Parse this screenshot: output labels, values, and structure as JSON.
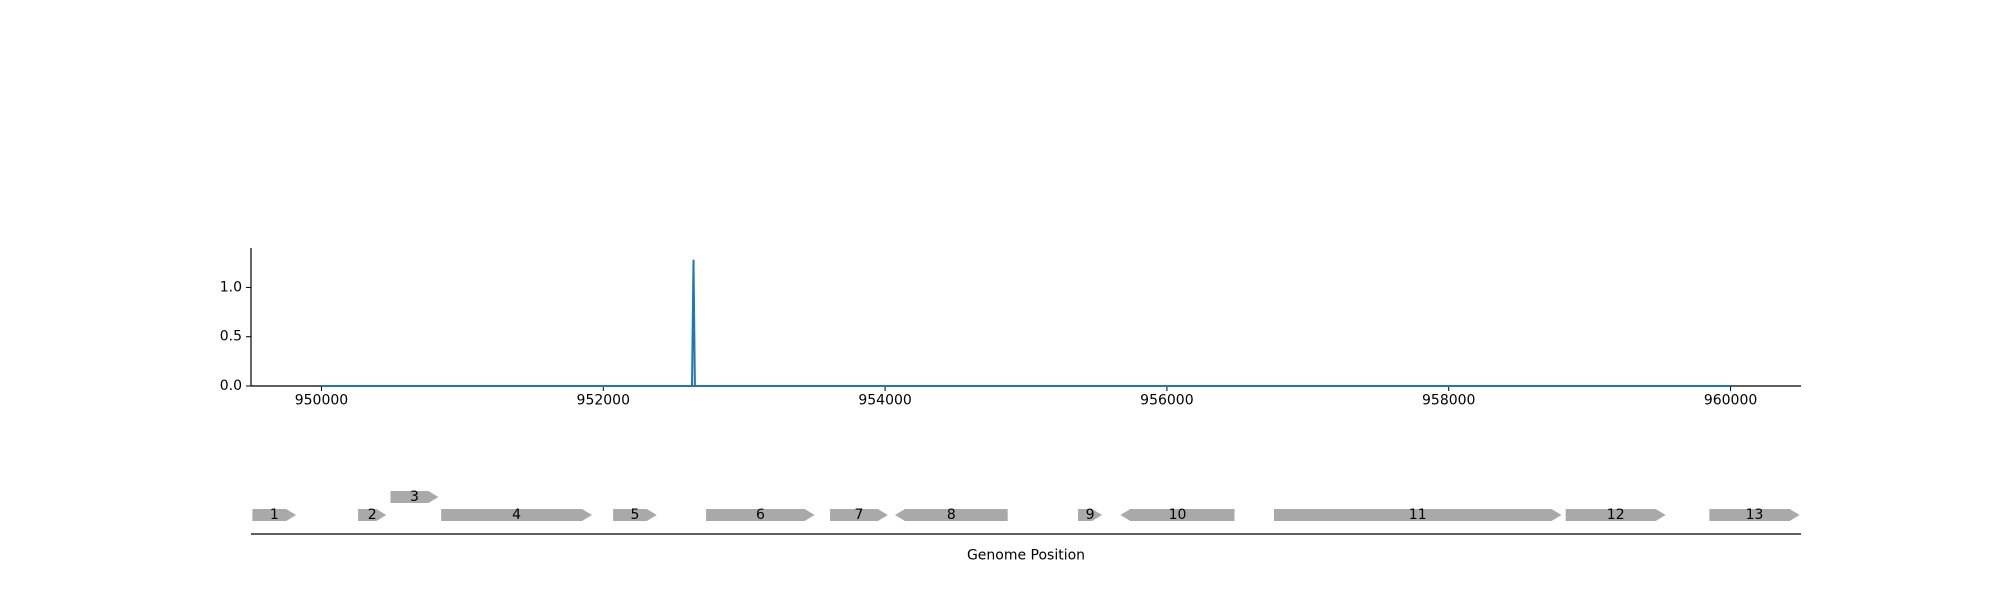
{
  "chart_data": [
    {
      "type": "line",
      "title": "",
      "xlabel": "",
      "ylabel": "",
      "xlim": [
        949500,
        960500
      ],
      "ylim": [
        0,
        1.4
      ],
      "x_ticks": [
        950000,
        952000,
        954000,
        956000,
        958000,
        960000
      ],
      "x_tick_labels": [
        "950000",
        "952000",
        "954000",
        "956000",
        "958000",
        "960000"
      ],
      "y_ticks": [
        0.0,
        0.5,
        1.0
      ],
      "y_tick_labels": [
        "0.0",
        "0.5",
        "1.0"
      ],
      "grid": false,
      "series": [
        {
          "color": "#1f77b4",
          "points": [
            [
              950000,
              0
            ],
            [
              952630,
              0
            ],
            [
              952640,
              1.28
            ],
            [
              952650,
              0
            ],
            [
              960000,
              0
            ]
          ]
        }
      ]
    },
    {
      "type": "gene-track",
      "xlabel": "Genome Position",
      "xlim": [
        949500,
        960500
      ],
      "gene_color": "#a9a9a9",
      "genes": [
        {
          "label": "1",
          "start": 949510,
          "end": 949820,
          "strand": "+",
          "row": 0
        },
        {
          "label": "2",
          "start": 950260,
          "end": 950460,
          "strand": "+",
          "row": 0
        },
        {
          "label": "3",
          "start": 950490,
          "end": 950830,
          "strand": "+",
          "row": 1
        },
        {
          "label": "4",
          "start": 950850,
          "end": 951920,
          "strand": "+",
          "row": 0
        },
        {
          "label": "5",
          "start": 952070,
          "end": 952380,
          "strand": "+",
          "row": 0
        },
        {
          "label": "6",
          "start": 952730,
          "end": 953500,
          "strand": "+",
          "row": 0
        },
        {
          "label": "7",
          "start": 953610,
          "end": 954020,
          "strand": "+",
          "row": 0
        },
        {
          "label": "8",
          "start": 954070,
          "end": 954870,
          "strand": "-",
          "row": 0
        },
        {
          "label": "9",
          "start": 955370,
          "end": 955540,
          "strand": "+",
          "row": 0
        },
        {
          "label": "10",
          "start": 955670,
          "end": 956480,
          "strand": "-",
          "row": 0
        },
        {
          "label": "11",
          "start": 956760,
          "end": 958800,
          "strand": "+",
          "row": 0
        },
        {
          "label": "12",
          "start": 958830,
          "end": 959540,
          "strand": "+",
          "row": 0
        },
        {
          "label": "13",
          "start": 959850,
          "end": 960490,
          "strand": "+",
          "row": 0
        }
      ]
    }
  ]
}
